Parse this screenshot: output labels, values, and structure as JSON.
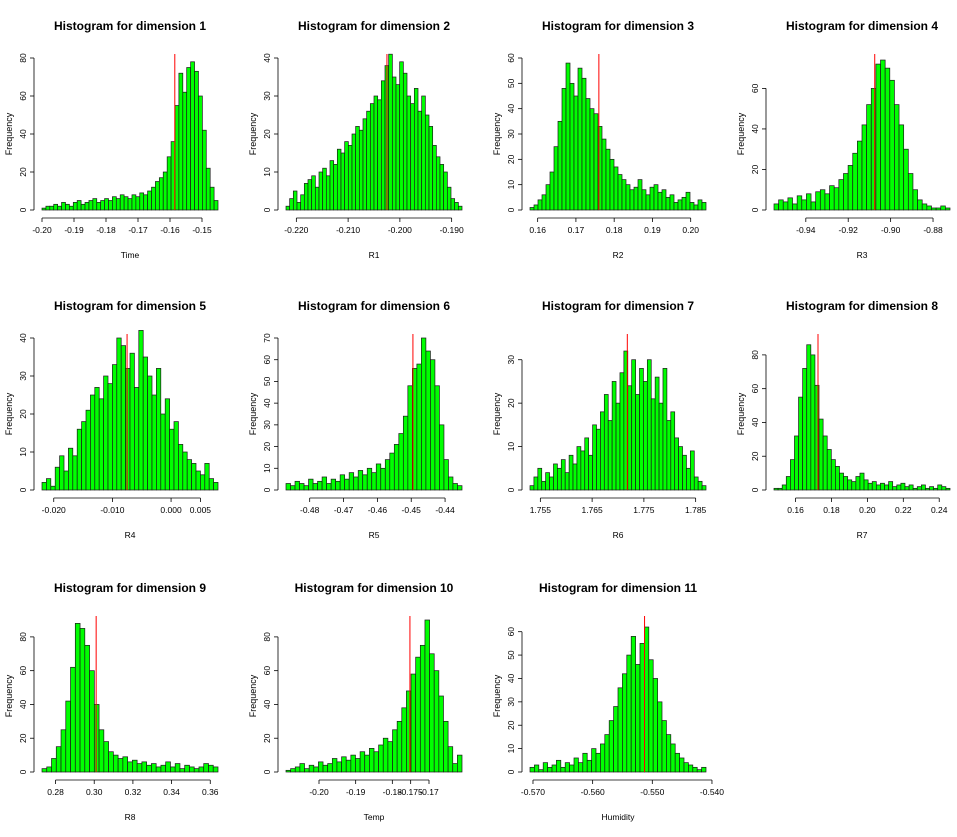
{
  "colors": {
    "bar_fill": "#00ff00",
    "bar_stroke": "#1a1a1a",
    "mean_line": "#ff0000",
    "axis": "#000000"
  },
  "chart_data": [
    {
      "type": "bar",
      "title": "Histogram for dimension 1",
      "xlabel": "Time",
      "ylabel": "Frequency",
      "xlim": [
        -0.2,
        -0.145
      ],
      "ylim": [
        0,
        80
      ],
      "xticks": [
        {
          "v": -0.2,
          "l": "-0.20"
        },
        {
          "v": -0.19,
          "l": "-0.19"
        },
        {
          "v": -0.18,
          "l": "-0.18"
        },
        {
          "v": -0.17,
          "l": "-0.17"
        },
        {
          "v": -0.16,
          "l": "-0.16"
        },
        {
          "v": -0.15,
          "l": "-0.15"
        }
      ],
      "yticks": [
        {
          "v": 0,
          "l": "0"
        },
        {
          "v": 20,
          "l": "20"
        },
        {
          "v": 40,
          "l": "40"
        },
        {
          "v": 60,
          "l": "60"
        },
        {
          "v": 80,
          "l": "80"
        }
      ],
      "mean_x": -0.1585,
      "values": [
        1,
        2,
        2,
        3,
        2,
        4,
        3,
        2,
        4,
        5,
        3,
        4,
        5,
        6,
        4,
        5,
        6,
        5,
        7,
        6,
        8,
        7,
        6,
        8,
        7,
        9,
        8,
        10,
        12,
        15,
        17,
        20,
        28,
        36,
        55,
        72,
        62,
        75,
        78,
        73,
        60,
        42,
        22,
        12,
        5
      ]
    },
    {
      "type": "bar",
      "title": "Histogram for dimension 2",
      "xlabel": "R1",
      "ylabel": "Frequency",
      "xlim": [
        -0.222,
        -0.188
      ],
      "ylim": [
        0,
        40
      ],
      "xticks": [
        {
          "v": -0.22,
          "l": "-0.220"
        },
        {
          "v": -0.21,
          "l": "-0.210"
        },
        {
          "v": -0.2,
          "l": "-0.200"
        },
        {
          "v": -0.19,
          "l": "-0.190"
        }
      ],
      "yticks": [
        {
          "v": 0,
          "l": "0"
        },
        {
          "v": 10,
          "l": "10"
        },
        {
          "v": 20,
          "l": "20"
        },
        {
          "v": 30,
          "l": "30"
        },
        {
          "v": 40,
          "l": "40"
        }
      ],
      "mean_x": -0.2025,
      "values": [
        1,
        3,
        5,
        2,
        4,
        7,
        8,
        9,
        6,
        10,
        11,
        9,
        13,
        12,
        16,
        15,
        18,
        17,
        20,
        22,
        21,
        24,
        26,
        28,
        30,
        29,
        34,
        38,
        41,
        35,
        33,
        39,
        36,
        30,
        28,
        32,
        26,
        30,
        25,
        22,
        17,
        14,
        12,
        10,
        6,
        3,
        2,
        1
      ]
    },
    {
      "type": "bar",
      "title": "Histogram for dimension 3",
      "xlabel": "R2",
      "ylabel": "Frequency",
      "xlim": [
        0.158,
        0.204
      ],
      "ylim": [
        0,
        60
      ],
      "xticks": [
        {
          "v": 0.16,
          "l": "0.16"
        },
        {
          "v": 0.17,
          "l": "0.17"
        },
        {
          "v": 0.18,
          "l": "0.18"
        },
        {
          "v": 0.19,
          "l": "0.19"
        },
        {
          "v": 0.2,
          "l": "0.20"
        }
      ],
      "yticks": [
        {
          "v": 0,
          "l": "0"
        },
        {
          "v": 10,
          "l": "10"
        },
        {
          "v": 20,
          "l": "20"
        },
        {
          "v": 30,
          "l": "30"
        },
        {
          "v": 40,
          "l": "40"
        },
        {
          "v": 50,
          "l": "50"
        },
        {
          "v": 60,
          "l": "60"
        }
      ],
      "mean_x": 0.176,
      "values": [
        1,
        2,
        4,
        6,
        10,
        15,
        25,
        35,
        48,
        58,
        50,
        45,
        56,
        52,
        44,
        40,
        38,
        33,
        28,
        24,
        20,
        17,
        14,
        12,
        10,
        8,
        9,
        12,
        8,
        6,
        9,
        10,
        7,
        8,
        5,
        6,
        3,
        4,
        5,
        7,
        3,
        2,
        4,
        3
      ]
    },
    {
      "type": "bar",
      "title": "Histogram for dimension 4",
      "xlabel": "R3",
      "ylabel": "Frequency",
      "xlim": [
        -0.955,
        -0.872
      ],
      "ylim": [
        0,
        75
      ],
      "xticks": [
        {
          "v": -0.94,
          "l": "-0.94"
        },
        {
          "v": -0.92,
          "l": "-0.92"
        },
        {
          "v": -0.9,
          "l": "-0.90"
        },
        {
          "v": -0.88,
          "l": "-0.88"
        }
      ],
      "yticks": [
        {
          "v": 0,
          "l": "0"
        },
        {
          "v": 20,
          "l": "20"
        },
        {
          "v": 40,
          "l": "40"
        },
        {
          "v": 60,
          "l": "60"
        }
      ],
      "mean_x": -0.9075,
      "values": [
        3,
        5,
        4,
        6,
        3,
        7,
        5,
        8,
        4,
        9,
        10,
        8,
        12,
        11,
        15,
        18,
        22,
        28,
        34,
        42,
        52,
        60,
        72,
        74,
        70,
        64,
        52,
        42,
        30,
        18,
        10,
        5,
        3,
        2,
        1,
        1,
        2,
        1
      ]
    },
    {
      "type": "bar",
      "title": "Histogram for dimension 5",
      "xlabel": "R4",
      "ylabel": "Frequency",
      "xlim": [
        -0.022,
        0.008
      ],
      "ylim": [
        0,
        40
      ],
      "xticks": [
        {
          "v": -0.02,
          "l": "-0.020"
        },
        {
          "v": -0.01,
          "l": "-0.010"
        },
        {
          "v": 0.0,
          "l": "0.000"
        },
        {
          "v": 0.005,
          "l": "0.005"
        }
      ],
      "yticks": [
        {
          "v": 0,
          "l": "0"
        },
        {
          "v": 10,
          "l": "10"
        },
        {
          "v": 20,
          "l": "20"
        },
        {
          "v": 30,
          "l": "30"
        },
        {
          "v": 40,
          "l": "40"
        }
      ],
      "mean_x": -0.0075,
      "values": [
        2,
        3,
        1,
        6,
        9,
        5,
        11,
        9,
        16,
        18,
        21,
        25,
        27,
        24,
        30,
        28,
        33,
        40,
        38,
        32,
        36,
        27,
        42,
        35,
        30,
        25,
        32,
        20,
        24,
        16,
        18,
        12,
        10,
        8,
        7,
        5,
        4,
        7,
        3,
        2
      ]
    },
    {
      "type": "bar",
      "title": "Histogram for dimension 6",
      "xlabel": "R5",
      "ylabel": "Frequency",
      "xlim": [
        -0.487,
        -0.435
      ],
      "ylim": [
        0,
        70
      ],
      "xticks": [
        {
          "v": -0.48,
          "l": "-0.48"
        },
        {
          "v": -0.47,
          "l": "-0.47"
        },
        {
          "v": -0.46,
          "l": "-0.46"
        },
        {
          "v": -0.45,
          "l": "-0.45"
        },
        {
          "v": -0.44,
          "l": "-0.44"
        }
      ],
      "yticks": [
        {
          "v": 0,
          "l": "0"
        },
        {
          "v": 10,
          "l": "10"
        },
        {
          "v": 20,
          "l": "20"
        },
        {
          "v": 30,
          "l": "30"
        },
        {
          "v": 40,
          "l": "40"
        },
        {
          "v": 50,
          "l": "50"
        },
        {
          "v": 60,
          "l": "60"
        },
        {
          "v": 70,
          "l": "70"
        }
      ],
      "mean_x": -0.4495,
      "values": [
        3,
        2,
        4,
        3,
        2,
        5,
        3,
        4,
        6,
        3,
        5,
        4,
        7,
        5,
        8,
        6,
        9,
        7,
        10,
        8,
        12,
        10,
        14,
        17,
        21,
        26,
        34,
        48,
        56,
        58,
        70,
        64,
        60,
        48,
        30,
        14,
        6,
        3,
        2
      ]
    },
    {
      "type": "bar",
      "title": "Histogram for dimension 7",
      "xlabel": "R6",
      "ylabel": "Frequency",
      "xlim": [
        1.753,
        1.787
      ],
      "ylim": [
        0,
        35
      ],
      "xticks": [
        {
          "v": 1.755,
          "l": "1.755"
        },
        {
          "v": 1.765,
          "l": "1.765"
        },
        {
          "v": 1.775,
          "l": "1.775"
        },
        {
          "v": 1.785,
          "l": "1.785"
        }
      ],
      "yticks": [
        {
          "v": 0,
          "l": "0"
        },
        {
          "v": 10,
          "l": "10"
        },
        {
          "v": 20,
          "l": "20"
        },
        {
          "v": 30,
          "l": "30"
        }
      ],
      "mean_x": 1.7718,
      "values": [
        1,
        3,
        5,
        2,
        4,
        3,
        6,
        5,
        7,
        4,
        8,
        6,
        10,
        9,
        12,
        8,
        15,
        14,
        18,
        22,
        16,
        25,
        20,
        27,
        32,
        24,
        30,
        22,
        28,
        25,
        30,
        21,
        26,
        20,
        28,
        16,
        18,
        12,
        10,
        8,
        5,
        9,
        3,
        2,
        1
      ]
    },
    {
      "type": "bar",
      "title": "Histogram for dimension 8",
      "xlabel": "R7",
      "ylabel": "Frequency",
      "xlim": [
        0.148,
        0.246
      ],
      "ylim": [
        0,
        90
      ],
      "xticks": [
        {
          "v": 0.16,
          "l": "0.16"
        },
        {
          "v": 0.18,
          "l": "0.18"
        },
        {
          "v": 0.2,
          "l": "0.20"
        },
        {
          "v": 0.22,
          "l": "0.22"
        },
        {
          "v": 0.24,
          "l": "0.24"
        }
      ],
      "yticks": [
        {
          "v": 0,
          "l": "0"
        },
        {
          "v": 20,
          "l": "20"
        },
        {
          "v": 40,
          "l": "40"
        },
        {
          "v": 60,
          "l": "60"
        },
        {
          "v": 80,
          "l": "80"
        }
      ],
      "mean_x": 0.1725,
      "values": [
        1,
        1,
        3,
        8,
        18,
        32,
        55,
        72,
        86,
        80,
        62,
        42,
        32,
        24,
        18,
        14,
        10,
        8,
        6,
        5,
        8,
        10,
        6,
        4,
        5,
        3,
        4,
        3,
        5,
        2,
        3,
        4,
        2,
        3,
        1,
        2,
        3,
        1,
        2,
        1,
        3,
        2,
        1
      ]
    },
    {
      "type": "bar",
      "title": "Histogram for dimension 9",
      "xlabel": "R8",
      "ylabel": "Frequency",
      "xlim": [
        0.273,
        0.364
      ],
      "ylim": [
        0,
        90
      ],
      "xticks": [
        {
          "v": 0.28,
          "l": "0.28"
        },
        {
          "v": 0.3,
          "l": "0.30"
        },
        {
          "v": 0.32,
          "l": "0.32"
        },
        {
          "v": 0.34,
          "l": "0.34"
        },
        {
          "v": 0.36,
          "l": "0.36"
        }
      ],
      "yticks": [
        {
          "v": 0,
          "l": "0"
        },
        {
          "v": 20,
          "l": "20"
        },
        {
          "v": 40,
          "l": "40"
        },
        {
          "v": 60,
          "l": "60"
        },
        {
          "v": 80,
          "l": "80"
        }
      ],
      "mean_x": 0.301,
      "values": [
        2,
        3,
        8,
        15,
        25,
        42,
        62,
        88,
        85,
        75,
        60,
        40,
        25,
        18,
        12,
        10,
        8,
        9,
        6,
        7,
        5,
        6,
        4,
        5,
        3,
        4,
        6,
        3,
        5,
        2,
        4,
        3,
        2,
        3,
        5,
        4,
        3
      ]
    },
    {
      "type": "bar",
      "title": "Histogram for dimension 10",
      "xlabel": "Temp",
      "ylabel": "Frequency",
      "xlim": [
        -0.209,
        -0.161
      ],
      "ylim": [
        0,
        90
      ],
      "xticks": [
        {
          "v": -0.2,
          "l": "-0.20"
        },
        {
          "v": -0.19,
          "l": "-0.19"
        },
        {
          "v": -0.18,
          "l": "-0.18"
        },
        {
          "v": -0.175,
          "l": "-0.175"
        },
        {
          "v": -0.17,
          "l": "-0.17"
        }
      ],
      "yticks": [
        {
          "v": 0,
          "l": "0"
        },
        {
          "v": 20,
          "l": "20"
        },
        {
          "v": 40,
          "l": "40"
        },
        {
          "v": 60,
          "l": "60"
        },
        {
          "v": 80,
          "l": "80"
        }
      ],
      "mean_x": -0.1752,
      "values": [
        1,
        2,
        3,
        5,
        2,
        4,
        3,
        6,
        4,
        5,
        8,
        6,
        9,
        7,
        10,
        8,
        12,
        10,
        14,
        12,
        16,
        20,
        18,
        25,
        30,
        38,
        48,
        58,
        68,
        75,
        90,
        70,
        60,
        45,
        30,
        15,
        5,
        10
      ]
    },
    {
      "type": "bar",
      "title": "Histogram for dimension 11",
      "xlabel": "Humidity",
      "ylabel": "Frequency",
      "xlim": [
        -0.5705,
        -0.541
      ],
      "ylim": [
        0,
        65
      ],
      "xticks": [
        {
          "v": -0.57,
          "l": "-0.570"
        },
        {
          "v": -0.56,
          "l": "-0.560"
        },
        {
          "v": -0.55,
          "l": "-0.550"
        },
        {
          "v": -0.54,
          "l": "-0.540"
        }
      ],
      "yticks": [
        {
          "v": 0,
          "l": "0"
        },
        {
          "v": 10,
          "l": "10"
        },
        {
          "v": 20,
          "l": "20"
        },
        {
          "v": 30,
          "l": "30"
        },
        {
          "v": 40,
          "l": "40"
        },
        {
          "v": 50,
          "l": "50"
        },
        {
          "v": 60,
          "l": "60"
        }
      ],
      "mean_x": -0.5513,
      "values": [
        2,
        3,
        1,
        4,
        2,
        3,
        5,
        2,
        4,
        3,
        6,
        4,
        8,
        5,
        10,
        8,
        12,
        16,
        22,
        28,
        36,
        42,
        50,
        58,
        46,
        55,
        62,
        48,
        40,
        30,
        22,
        16,
        12,
        8,
        6,
        4,
        3,
        2,
        1,
        2
      ]
    }
  ]
}
